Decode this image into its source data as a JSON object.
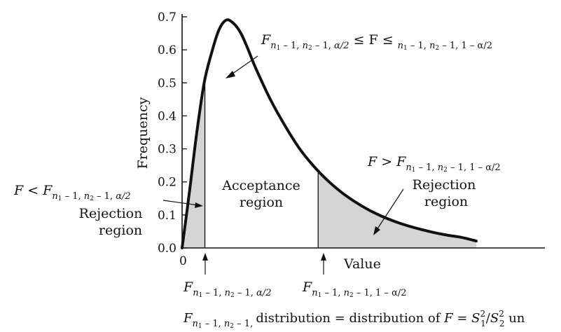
{
  "chart_data": {
    "type": "area",
    "x_label": "Value",
    "y_label": "Frequency",
    "y_ticks": [
      "0.0",
      "0.1",
      "0.2",
      "0.3",
      "0.4",
      "0.5",
      "0.6",
      "0.7"
    ],
    "x_ticks": [
      "0"
    ],
    "ylim": [
      0,
      0.72
    ],
    "xlim": [
      0,
      5.6
    ],
    "grid": false,
    "curve": {
      "x": [
        0,
        0.1,
        0.2,
        0.3,
        0.4,
        0.5,
        0.6,
        0.7,
        0.8,
        0.9,
        1.0,
        1.2,
        1.4,
        1.6,
        1.8,
        2.0,
        2.2,
        2.4,
        2.6,
        2.8,
        3.0,
        3.2,
        3.4,
        3.6,
        3.8,
        4.0
      ],
      "y": [
        0,
        0.17,
        0.35,
        0.5,
        0.59,
        0.66,
        0.69,
        0.68,
        0.65,
        0.6,
        0.545,
        0.45,
        0.37,
        0.3,
        0.245,
        0.2,
        0.163,
        0.133,
        0.108,
        0.088,
        0.072,
        0.059,
        0.048,
        0.039,
        0.032,
        0.021
      ]
    },
    "lower_critical_x": 0.31,
    "upper_critical_x": 1.85,
    "annotations": {
      "acceptance": {
        "lead": "F",
        "sub1": "n",
        "sub1a": "1",
        "sub1b": " – 1, ",
        "sub2": "n",
        "sub2a": "2",
        "sub2b": " – 1, ",
        "alpha_lo": "α/2",
        "op": " ≤ F ≤ ",
        "alpha_hi": "1 – α/2"
      },
      "acceptance_region": [
        "Acceptance",
        "region"
      ],
      "left_rejection_expr": {
        "lead": "F < F",
        "alpha": "α/2"
      },
      "left_rejection_region": [
        "Rejection",
        "region"
      ],
      "right_rejection_expr": {
        "lead": "F > F",
        "alpha": "1 – α/2"
      },
      "right_rejection_region": [
        "Rejection",
        "region"
      ],
      "lower_crit_label": {
        "lead": "F",
        "alpha": "α/2"
      },
      "upper_crit_label": {
        "lead": "F",
        "alpha": "1 – α/2"
      },
      "caption": {
        "lead": "F",
        "mid": " distribution = distribution of ",
        "f": "F",
        "eq": " = ",
        "s1": "S",
        "s1sub": "1",
        "sq": "2",
        "slash": "/",
        "s2": "S",
        "s2sub": "2",
        "tail": " un"
      }
    }
  }
}
